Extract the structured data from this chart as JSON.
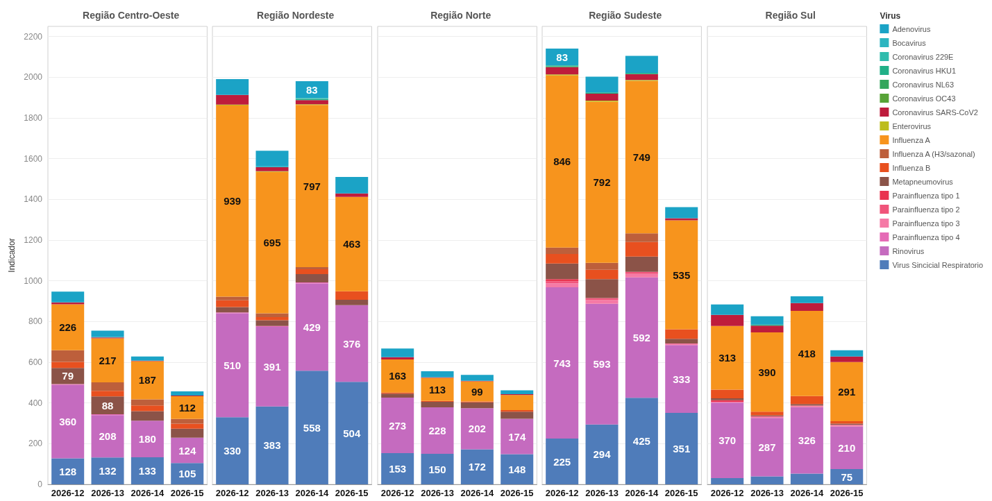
{
  "chart_data": [
    {
      "type": "bar",
      "title": "Região Centro-Oeste",
      "ylabel": "Indicador",
      "stacked": true,
      "grid": "y",
      "ylim": [
        0,
        2250
      ],
      "yticks": [
        0,
        200,
        400,
        600,
        800,
        1000,
        1200,
        1400,
        1600,
        1800,
        2000,
        2200
      ],
      "categories": [
        "2026-12",
        "2026-13",
        "2026-14",
        "2026-15"
      ],
      "series": [
        {
          "color": "#4f7cba",
          "values": [
            128,
            132,
            133,
            105
          ],
          "value_labels": [
            "128",
            "132",
            "133",
            "105"
          ]
        },
        {
          "color": "#c56bbf",
          "values": [
            360,
            208,
            180,
            124
          ],
          "value_labels": [
            "360",
            "208",
            "180",
            "124"
          ]
        },
        {
          "color": "#e56bb6",
          "values": [
            5,
            4,
            null,
            null
          ]
        },
        {
          "color": "#8b5348",
          "values": [
            79,
            88,
            47,
            45
          ],
          "value_labels": [
            "79",
            "88",
            null,
            null
          ]
        },
        {
          "color": "#e8501f",
          "values": [
            30,
            27,
            28,
            24
          ]
        },
        {
          "color": "#bd5f3b",
          "values": [
            57,
            42,
            30,
            23
          ]
        },
        {
          "color": "#f7941d",
          "values": [
            226,
            217,
            187,
            112
          ],
          "value_labels": [
            "226",
            "217",
            "187",
            "112"
          ]
        },
        {
          "color": "#be1c3c",
          "values": [
            9,
            4,
            3,
            3
          ]
        },
        {
          "color": "#2cb5c0",
          "values": [
            3,
            3,
            null,
            null
          ]
        },
        {
          "color": "#1ba3c6",
          "values": [
            50,
            30,
            20,
            21
          ]
        }
      ]
    },
    {
      "type": "bar",
      "title": "Região Nordeste",
      "stacked": true,
      "grid": "y",
      "tick_labels": "x",
      "ylim": [
        0,
        2250
      ],
      "yticks": [
        0,
        200,
        400,
        600,
        800,
        1000,
        1200,
        1400,
        1600,
        1800,
        2000,
        2200
      ],
      "categories": [
        "2026-12",
        "2026-13",
        "2026-14",
        "2026-15"
      ],
      "series": [
        {
          "color": "#4f7cba",
          "values": [
            330,
            383,
            558,
            504
          ],
          "value_labels": [
            "330",
            "383",
            "558",
            "504"
          ]
        },
        {
          "color": "#c56bbf",
          "values": [
            510,
            391,
            429,
            376
          ],
          "value_labels": [
            "510",
            "391",
            "429",
            "376"
          ]
        },
        {
          "color": "#e56bb6",
          "values": [
            5,
            4,
            5,
            null
          ]
        },
        {
          "color": "#8b5348",
          "values": [
            26,
            28,
            41,
            27
          ]
        },
        {
          "color": "#e8501f",
          "values": [
            33,
            16,
            24,
            42
          ]
        },
        {
          "color": "#bd5f3b",
          "values": [
            18,
            18,
            10,
            null
          ]
        },
        {
          "color": "#f7941d",
          "values": [
            939,
            695,
            797,
            463
          ],
          "value_labels": [
            "939",
            "695",
            "797",
            "463"
          ]
        },
        {
          "color": "#bdbd1c",
          "values": [
            5,
            3,
            3,
            null
          ]
        },
        {
          "color": "#be1c3c",
          "values": [
            47,
            20,
            21,
            17
          ]
        },
        {
          "color": "#21b087",
          "values": [
            null,
            null,
            6,
            null
          ]
        },
        {
          "color": "#30bcad",
          "values": [
            null,
            null,
            4,
            null
          ]
        },
        {
          "color": "#2cb5c0",
          "values": [
            null,
            4,
            null,
            null
          ]
        },
        {
          "color": "#1ba3c6",
          "values": [
            78,
            77,
            83,
            81
          ],
          "value_labels": [
            null,
            null,
            "83",
            null
          ]
        }
      ]
    },
    {
      "type": "bar",
      "title": "Região Norte",
      "stacked": true,
      "grid": "y",
      "tick_labels": "x",
      "ylim": [
        0,
        2250
      ],
      "yticks": [
        0,
        200,
        400,
        600,
        800,
        1000,
        1200,
        1400,
        1600,
        1800,
        2000,
        2200
      ],
      "categories": [
        "2026-12",
        "2026-13",
        "2026-14",
        "2026-15"
      ],
      "series": [
        {
          "color": "#4f7cba",
          "values": [
            153,
            150,
            172,
            148
          ],
          "value_labels": [
            "153",
            "150",
            "172",
            "148"
          ]
        },
        {
          "color": "#c56bbf",
          "values": [
            273,
            228,
            202,
            174
          ],
          "value_labels": [
            "273",
            "228",
            "202",
            "174"
          ]
        },
        {
          "color": "#8b5348",
          "values": [
            20,
            28,
            29,
            35
          ]
        },
        {
          "color": "#e8501f",
          "values": [
            5,
            4,
            4,
            8
          ]
        },
        {
          "color": "#f7941d",
          "values": [
            163,
            113,
            99,
            74
          ],
          "value_labels": [
            "163",
            "113",
            "99",
            null
          ]
        },
        {
          "color": "#be1c3c",
          "values": [
            11,
            3,
            3,
            4
          ]
        },
        {
          "color": "#1ba3c6",
          "values": [
            42,
            30,
            29,
            19
          ]
        }
      ]
    },
    {
      "type": "bar",
      "title": "Região Sudeste",
      "stacked": true,
      "grid": "y",
      "tick_labels": "x",
      "ylim": [
        0,
        2250
      ],
      "yticks": [
        0,
        200,
        400,
        600,
        800,
        1000,
        1200,
        1400,
        1600,
        1800,
        2000,
        2200
      ],
      "categories": [
        "2026-12",
        "2026-13",
        "2026-14",
        "2026-15"
      ],
      "series": [
        {
          "color": "#4f7cba",
          "values": [
            225,
            294,
            425,
            351
          ],
          "value_labels": [
            "225",
            "294",
            "425",
            "351"
          ]
        },
        {
          "color": "#c56bbf",
          "values": [
            743,
            593,
            592,
            333
          ],
          "value_labels": [
            "743",
            "593",
            "592",
            "333"
          ]
        },
        {
          "color": "#f57aa6",
          "values": [
            20,
            18,
            17,
            8
          ]
        },
        {
          "color": "#f0547a",
          "values": [
            10,
            10,
            10,
            null
          ]
        },
        {
          "color": "#e9344f",
          "values": [
            10,
            null,
            null,
            null
          ]
        },
        {
          "color": "#8b5348",
          "values": [
            77,
            93,
            75,
            23
          ]
        },
        {
          "color": "#e8501f",
          "values": [
            47,
            46,
            72,
            47
          ]
        },
        {
          "color": "#bd5f3b",
          "values": [
            31,
            34,
            42,
            null
          ]
        },
        {
          "color": "#f7941d",
          "values": [
            846,
            792,
            749,
            535
          ],
          "value_labels": [
            "846",
            "792",
            "749",
            "535"
          ]
        },
        {
          "color": "#bdbd1c",
          "values": [
            5,
            5,
            5,
            null
          ]
        },
        {
          "color": "#be1c3c",
          "values": [
            36,
            34,
            29,
            10
          ]
        },
        {
          "color": "#33a65c",
          "values": [
            4,
            null,
            null,
            null
          ]
        },
        {
          "color": "#21b087",
          "values": [
            4,
            6,
            6,
            null
          ]
        },
        {
          "color": "#1ba3c6",
          "values": [
            83,
            78,
            83,
            55
          ],
          "value_labels": [
            "83",
            null,
            null,
            null
          ]
        }
      ]
    },
    {
      "type": "bar",
      "title": "Região Sul",
      "stacked": true,
      "grid": "y",
      "tick_labels": "x",
      "legend": "right",
      "legend_title": "Virus",
      "ylim": [
        0,
        2250
      ],
      "yticks": [
        0,
        200,
        400,
        600,
        800,
        1000,
        1200,
        1400,
        1600,
        1800,
        2000,
        2200
      ],
      "categories": [
        "2026-12",
        "2026-13",
        "2026-14",
        "2026-15"
      ],
      "series": [
        {
          "name": "Virus Sincicial Respiratorio",
          "color": "#4f7cba",
          "values": [
            31,
            39,
            53,
            75
          ],
          "value_labels": [
            null,
            null,
            null,
            "75"
          ]
        },
        {
          "name": "Rinovirus",
          "color": "#c56bbf",
          "values": [
            370,
            287,
            326,
            210
          ],
          "value_labels": [
            "370",
            "287",
            "326",
            "210"
          ]
        },
        {
          "name": "Parainfluenza tipo 4",
          "color": "#e56bb6",
          "values": [
            null,
            null,
            null,
            null
          ]
        },
        {
          "name": "Parainfluenza tipo 3",
          "color": "#f57aa6",
          "values": [
            5,
            8,
            8,
            7
          ]
        },
        {
          "name": "Parainfluenza tipo 2",
          "color": "#f0547a",
          "values": [
            null,
            null,
            null,
            null
          ]
        },
        {
          "name": "Parainfluenza tipo 1",
          "color": "#e9344f",
          "values": [
            7,
            null,
            null,
            null
          ]
        },
        {
          "name": "Metapneumovirus",
          "color": "#8b5348",
          "values": [
            10,
            5,
            8,
            6
          ]
        },
        {
          "name": "Influenza B",
          "color": "#e8501f",
          "values": [
            42,
            18,
            39,
            12
          ]
        },
        {
          "name": "Influenza A (H3/sazonal)",
          "color": "#bd5f3b",
          "values": [
            null,
            null,
            null,
            null
          ]
        },
        {
          "name": "Influenza A",
          "color": "#f7941d",
          "values": [
            313,
            390,
            418,
            291
          ],
          "value_labels": [
            "313",
            "390",
            "418",
            "291"
          ]
        },
        {
          "name": "Enterovirus",
          "color": "#bdbd1c",
          "values": [
            null,
            null,
            null,
            null
          ]
        },
        {
          "name": "Coronavirus SARS-CoV2",
          "color": "#be1c3c",
          "values": [
            55,
            33,
            39,
            27
          ]
        },
        {
          "name": "Coronavirus OC43",
          "color": "#57a337",
          "values": [
            null,
            null,
            null,
            null
          ]
        },
        {
          "name": "Coronavirus NL63",
          "color": "#33a65c",
          "values": [
            null,
            null,
            null,
            null
          ]
        },
        {
          "name": "Coronavirus HKU1",
          "color": "#21b087",
          "values": [
            null,
            5,
            null,
            null
          ]
        },
        {
          "name": "Coronavirus 229E",
          "color": "#30bcad",
          "values": [
            null,
            null,
            null,
            null
          ]
        },
        {
          "name": "Bocavirus",
          "color": "#2cb5c0",
          "values": [
            null,
            null,
            null,
            null
          ]
        },
        {
          "name": "Adenovirus",
          "color": "#1ba3c6",
          "values": [
            51,
            41,
            33,
            31
          ]
        }
      ]
    }
  ]
}
